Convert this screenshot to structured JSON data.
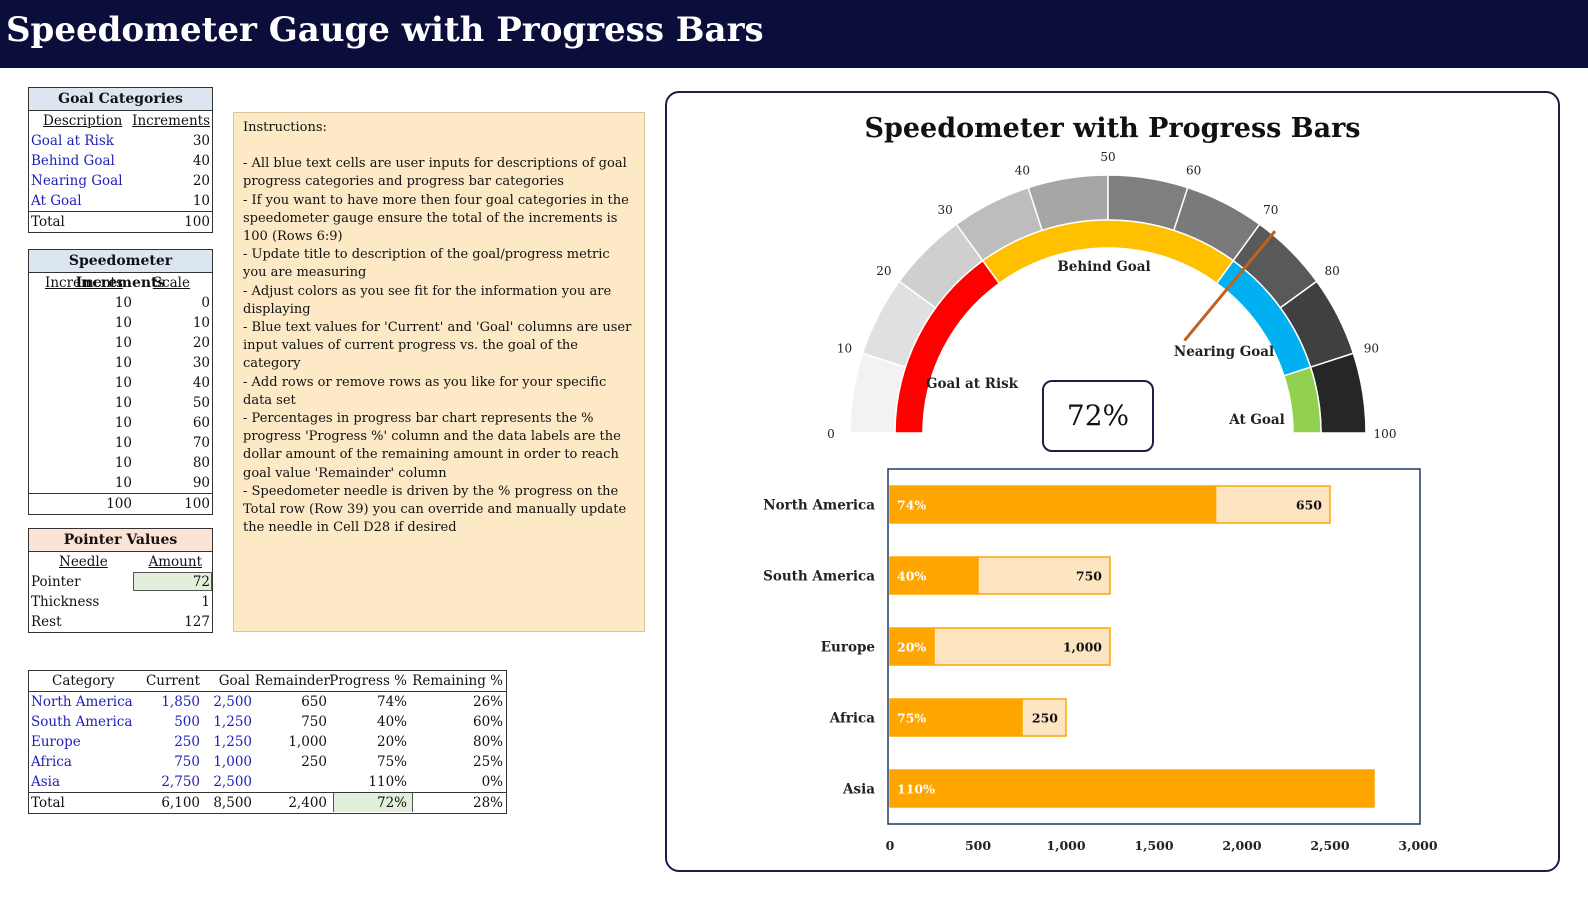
{
  "page_title": "Speedometer Gauge with Progress Bars",
  "goal_categories": {
    "title": "Goal Categories",
    "col_description": "Description",
    "col_increments": "Increments",
    "rows": [
      {
        "description": "Goal at Risk",
        "increments": "30"
      },
      {
        "description": "Behind Goal",
        "increments": "40"
      },
      {
        "description": "Nearing Goal",
        "increments": "20"
      },
      {
        "description": "At Goal",
        "increments": "10"
      }
    ],
    "total_label": "Total",
    "total_value": "100"
  },
  "speedometer_increments": {
    "title": "Speedometer Increments",
    "col_increments": "Increments",
    "col_scale": "Scale",
    "rows": [
      {
        "inc": "10",
        "scale": "0"
      },
      {
        "inc": "10",
        "scale": "10"
      },
      {
        "inc": "10",
        "scale": "20"
      },
      {
        "inc": "10",
        "scale": "30"
      },
      {
        "inc": "10",
        "scale": "40"
      },
      {
        "inc": "10",
        "scale": "50"
      },
      {
        "inc": "10",
        "scale": "60"
      },
      {
        "inc": "10",
        "scale": "70"
      },
      {
        "inc": "10",
        "scale": "80"
      },
      {
        "inc": "10",
        "scale": "90"
      }
    ],
    "total_inc": "100",
    "total_scale": "100"
  },
  "pointer_values": {
    "title": "Pointer Values",
    "col_needle": "Needle",
    "col_amount": "Amount",
    "pointer_label": "Pointer",
    "pointer_value": "72",
    "thickness_label": "Thickness",
    "thickness_value": "1",
    "rest_label": "Rest",
    "rest_value": "127"
  },
  "instructions": {
    "heading": "Instructions:",
    "lines": [
      "- All blue text cells are user inputs for descriptions of goal progress categories and progress bar categories",
      "- If you want to have more then four goal categories in the speedometer gauge ensure the total of the increments is 100 (Rows 6:9)",
      "- Update title to description of the goal/progress metric you are measuring",
      "- Adjust colors as you see fit for the information you are displaying",
      "- Blue text values for 'Current' and 'Goal' columns are user input values of current progress vs. the goal of the category",
      "- Add rows or remove rows as you like for your specific data set",
      "- Percentages in progress bar chart represents the % progress 'Progress %' column and the data labels are the dollar amount of the remaining amount in order to reach goal value 'Remainder' column",
      "- Speedometer needle is driven by the % progress on the Total row (Row 39) you can override and manually update the needle in Cell D28 if desired"
    ]
  },
  "data_table": {
    "headers": [
      "Category",
      "Current",
      "Goal",
      "Remainder",
      "Progress %",
      "Remaining %"
    ],
    "rows": [
      {
        "category": "North America",
        "current": "1,850",
        "goal": "2,500",
        "remainder": "650",
        "progress": "74%",
        "remaining": "26%"
      },
      {
        "category": "South America",
        "current": "500",
        "goal": "1,250",
        "remainder": "750",
        "progress": "40%",
        "remaining": "60%"
      },
      {
        "category": "Europe",
        "current": "250",
        "goal": "1,250",
        "remainder": "1,000",
        "progress": "20%",
        "remaining": "80%"
      },
      {
        "category": "Africa",
        "current": "750",
        "goal": "1,000",
        "remainder": "250",
        "progress": "75%",
        "remaining": "25%"
      },
      {
        "category": "Asia",
        "current": "2,750",
        "goal": "2,500",
        "remainder": "",
        "progress": "110%",
        "remaining": "0%"
      }
    ],
    "total": {
      "category": "Total",
      "current": "6,100",
      "goal": "8,500",
      "remainder": "2,400",
      "progress": "72%",
      "remaining": "28%"
    }
  },
  "colors": {
    "banner": "#0b0d3a",
    "input_blue": "#1f1fb8",
    "header_fill": "#dce6f1",
    "pointer_header_fill": "#fbe3d6",
    "highlight_green": "#e2efda",
    "instructions_fill": "#fde9c6",
    "bar_progress": "#ffa500",
    "bar_remaining": "#fde5c2",
    "needle": "#c0611e"
  },
  "chart_data": [
    {
      "type": "gauge",
      "title": "Speedometer with Progress Bars",
      "range": [
        0,
        100
      ],
      "scale_ticks": [
        "0",
        "10",
        "20",
        "30",
        "40",
        "50",
        "60",
        "70",
        "80",
        "90",
        "100"
      ],
      "scale_colors": [
        "#f2f2f2",
        "#e0e0e0",
        "#cfcfcf",
        "#bdbdbd",
        "#a6a6a6",
        "#7f7f7f",
        "#7a7a7a",
        "#595959",
        "#404040",
        "#262626"
      ],
      "categories": [
        {
          "name": "Goal at Risk",
          "value": 30,
          "color": "#ff0000"
        },
        {
          "name": "Behind Goal",
          "value": 40,
          "color": "#ffc000"
        },
        {
          "name": "Nearing Goal",
          "value": 20,
          "color": "#00b0f0"
        },
        {
          "name": "At Goal",
          "value": 10,
          "color": "#92d050"
        }
      ],
      "needle_value": 72,
      "center_label": "72%"
    },
    {
      "type": "bar",
      "orientation": "horizontal",
      "stacked": true,
      "categories": [
        "North America",
        "South America",
        "Europe",
        "Africa",
        "Asia"
      ],
      "series": [
        {
          "values": [
            1850,
            500,
            250,
            750,
            2750
          ],
          "labels": [
            "74%",
            "40%",
            "20%",
            "75%",
            "110%"
          ],
          "color": "#ffa500"
        },
        {
          "values": [
            650,
            750,
            1000,
            250,
            0
          ],
          "labels": [
            "650",
            "750",
            "1,000",
            "250",
            ""
          ],
          "color": "#fde5c2"
        }
      ],
      "xlim": [
        0,
        3000
      ],
      "x_ticks": [
        "0",
        "500",
        "1,000",
        "1,500",
        "2,000",
        "2,500",
        "3,000"
      ]
    }
  ]
}
